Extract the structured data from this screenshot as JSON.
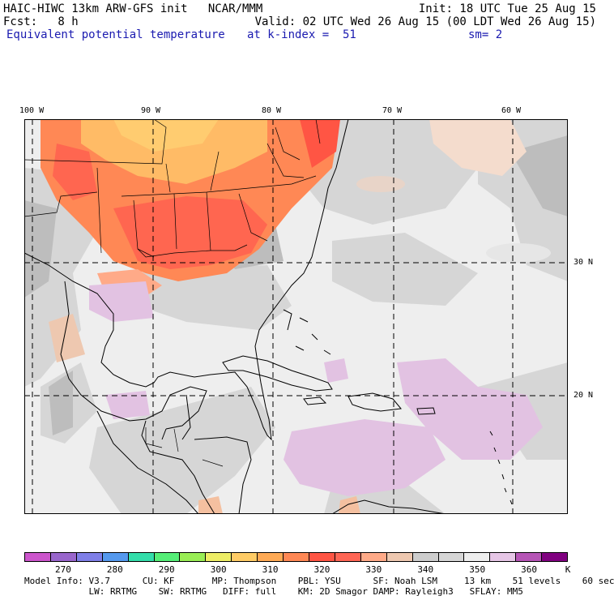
{
  "header": {
    "line1_left": "HAIC-HIWC 13km ARW-GFS init   NCAR/MMM",
    "line1_right": "Init: 18 UTC Tue 25 Aug 15",
    "line2_left": "Fcst:   8 h",
    "line2_right": "Valid: 02 UTC Wed 26 Aug 15 (00 LDT Wed 26 Aug 15)",
    "field_name": "Equivalent potential temperature",
    "level": "at k-index =  51",
    "smoothing": "sm= 2"
  },
  "axes": {
    "lon_labels": [
      "100 W",
      "90 W",
      "80 W",
      "70 W",
      "60 W"
    ],
    "lat_labels": [
      "30 N",
      "20 N"
    ]
  },
  "colorbar": {
    "unit": "K",
    "tick_labels": [
      "270",
      "280",
      "290",
      "300",
      "310",
      "320",
      "330",
      "340",
      "350",
      "360"
    ],
    "colors": [
      "#cc55cc",
      "#9966cc",
      "#7f7fe8",
      "#5599ee",
      "#33ddaa",
      "#55ee77",
      "#99ee55",
      "#eeee66",
      "#ffcc66",
      "#ffaa55",
      "#ff8855",
      "#ff5544",
      "#ff6655",
      "#ffaa88",
      "#eec8b0",
      "#cdcdcd",
      "#d6d6d6",
      "#eeeeee",
      "#e6c6e6",
      "#b655b6",
      "#800080"
    ]
  },
  "footer": {
    "line1": "Model Info: V3.7      CU: KF       MP: Thompson    PBL: YSU      SF: Noah LSM     13 km    51 levels    60 sec",
    "line2": "            LW: RRTMG    SW: RRTMG   DIFF: full    KM: 2D Smagor DAMP: Rayleigh3   SFLAY: MM5"
  }
}
